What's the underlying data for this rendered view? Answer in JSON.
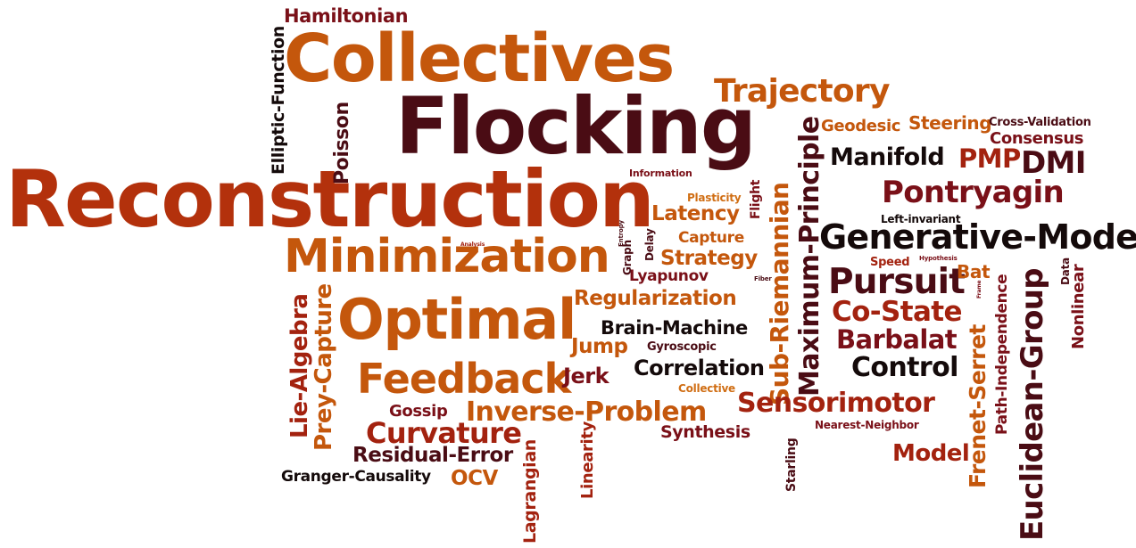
{
  "colors": {
    "dark": "#4a0c14",
    "maroon": "#7a1018",
    "red": "#a3220f",
    "brick": "#b3310c",
    "orange": "#c4570c",
    "amber": "#d06e14",
    "black": "#140a0a"
  },
  "words": [
    {
      "id": "w0",
      "text": "Hamiltonian",
      "color": "maroon"
    },
    {
      "id": "w1",
      "text": "Collectives",
      "color": "orange"
    },
    {
      "id": "w2",
      "text": "Flocking",
      "color": "dark"
    },
    {
      "id": "w3",
      "text": "Trajectory",
      "color": "orange"
    },
    {
      "id": "w4",
      "text": "Reconstruction",
      "color": "brick"
    },
    {
      "id": "w5",
      "text": "Elliptic-Function",
      "color": "black"
    },
    {
      "id": "w6",
      "text": "Poisson",
      "color": "dark"
    },
    {
      "id": "w7",
      "text": "Minimization",
      "color": "orange"
    },
    {
      "id": "w8",
      "text": "Optimal",
      "color": "orange"
    },
    {
      "id": "w9",
      "text": "Regularization",
      "color": "orange"
    },
    {
      "id": "w10",
      "text": "Brain-Machine",
      "color": "black"
    },
    {
      "id": "w11",
      "text": "Feedback",
      "color": "orange"
    },
    {
      "id": "w12",
      "text": "Jump",
      "color": "orange"
    },
    {
      "id": "w13",
      "text": "Gyroscopic",
      "color": "dark"
    },
    {
      "id": "w14",
      "text": "Correlation",
      "color": "black"
    },
    {
      "id": "w15",
      "text": "Jerk",
      "color": "maroon"
    },
    {
      "id": "w16",
      "text": "Collective",
      "color": "amber"
    },
    {
      "id": "w17",
      "text": "Lie-Algebra",
      "color": "red"
    },
    {
      "id": "w18",
      "text": "Prey-Capture",
      "color": "orange"
    },
    {
      "id": "w19",
      "text": "Gossip",
      "color": "maroon"
    },
    {
      "id": "w20",
      "text": "Inverse-Problem",
      "color": "orange"
    },
    {
      "id": "w21",
      "text": "Curvature",
      "color": "red"
    },
    {
      "id": "w22",
      "text": "Synthesis",
      "color": "maroon"
    },
    {
      "id": "w23",
      "text": "Residual-Error",
      "color": "dark"
    },
    {
      "id": "w24",
      "text": "Granger-Causality",
      "color": "black"
    },
    {
      "id": "w25",
      "text": "OCV",
      "color": "orange"
    },
    {
      "id": "w26",
      "text": "Lagrangian",
      "color": "red"
    },
    {
      "id": "w27",
      "text": "Linearity",
      "color": "red"
    },
    {
      "id": "w28",
      "text": "Information",
      "color": "maroon"
    },
    {
      "id": "w29",
      "text": "Plasticity",
      "color": "amber"
    },
    {
      "id": "w30",
      "text": "Latency",
      "color": "orange"
    },
    {
      "id": "w31",
      "text": "Flight",
      "color": "maroon"
    },
    {
      "id": "w32",
      "text": "Capture",
      "color": "orange"
    },
    {
      "id": "w33",
      "text": "Strategy",
      "color": "orange"
    },
    {
      "id": "w34",
      "text": "Lyapunov",
      "color": "maroon"
    },
    {
      "id": "w35",
      "text": "Graph",
      "color": "dark"
    },
    {
      "id": "w36",
      "text": "Entropy",
      "color": "dark"
    },
    {
      "id": "w37",
      "text": "Delay",
      "color": "dark"
    },
    {
      "id": "w38",
      "text": "Analysis",
      "color": "red"
    },
    {
      "id": "w39",
      "text": "Fiber",
      "color": "dark"
    },
    {
      "id": "w40",
      "text": "Sub-Riemannian",
      "color": "orange"
    },
    {
      "id": "w41",
      "text": "Maximum-Principle",
      "color": "dark"
    },
    {
      "id": "w42",
      "text": "Geodesic",
      "color": "orange"
    },
    {
      "id": "w43",
      "text": "Steering",
      "color": "orange"
    },
    {
      "id": "w44",
      "text": "Cross-Validation",
      "color": "dark"
    },
    {
      "id": "w45",
      "text": "Consensus",
      "color": "maroon"
    },
    {
      "id": "w46",
      "text": "Manifold",
      "color": "black"
    },
    {
      "id": "w47",
      "text": "PMP",
      "color": "red"
    },
    {
      "id": "w48",
      "text": "DMI",
      "color": "dark"
    },
    {
      "id": "w49",
      "text": "Pontryagin",
      "color": "maroon"
    },
    {
      "id": "w50",
      "text": "Left-invariant",
      "color": "black"
    },
    {
      "id": "w51",
      "text": "Generative-Model",
      "color": "black"
    },
    {
      "id": "w52",
      "text": "Speed",
      "color": "red"
    },
    {
      "id": "w53",
      "text": "Hypothesis",
      "color": "maroon"
    },
    {
      "id": "w54",
      "text": "Pursuit",
      "color": "dark"
    },
    {
      "id": "w55",
      "text": "Bat",
      "color": "orange"
    },
    {
      "id": "w56",
      "text": "Frame",
      "color": "maroon"
    },
    {
      "id": "w57",
      "text": "Co-State",
      "color": "red"
    },
    {
      "id": "w58",
      "text": "Barbalat",
      "color": "maroon"
    },
    {
      "id": "w59",
      "text": "Control",
      "color": "black"
    },
    {
      "id": "w60",
      "text": "Sensorimotor",
      "color": "red"
    },
    {
      "id": "w61",
      "text": "Nearest-Neighbor",
      "color": "maroon"
    },
    {
      "id": "w62",
      "text": "Model",
      "color": "red"
    },
    {
      "id": "w63",
      "text": "Starling",
      "color": "dark"
    },
    {
      "id": "w64",
      "text": "Euclidean-Group",
      "color": "dark"
    },
    {
      "id": "w65",
      "text": "Frenet-Serret",
      "color": "orange"
    },
    {
      "id": "w66",
      "text": "Path-Independence",
      "color": "maroon"
    },
    {
      "id": "w67",
      "text": "Data",
      "color": "dark"
    },
    {
      "id": "w68",
      "text": "Nonlinear",
      "color": "maroon"
    }
  ]
}
